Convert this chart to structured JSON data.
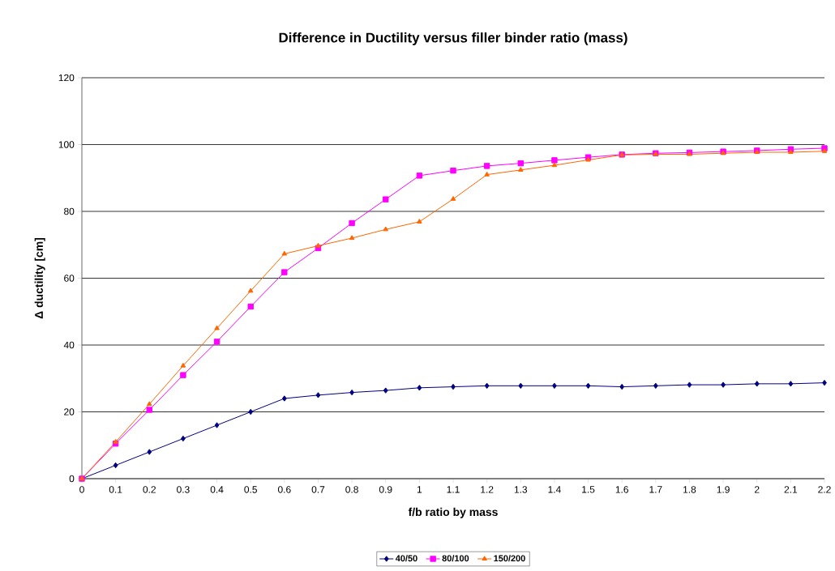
{
  "chart_data": {
    "type": "line",
    "title": "Difference in Ductility versus filler binder ratio (mass)",
    "xlabel": "f/b ratio by mass",
    "ylabel": "Δ ductility [cm]",
    "x": [
      0,
      0.1,
      0.2,
      0.3,
      0.4,
      0.5,
      0.6,
      0.7,
      0.8,
      0.9,
      1,
      1.1,
      1.2,
      1.3,
      1.4,
      1.5,
      1.6,
      1.7,
      1.8,
      1.9,
      2,
      2.1,
      2.2
    ],
    "series": [
      {
        "name": "40/50",
        "color": "#000080",
        "marker": "diamond",
        "values": [
          0,
          4,
          8,
          12,
          16,
          20,
          24,
          25,
          25.8,
          26.4,
          27.2,
          27.5,
          27.8,
          27.8,
          27.8,
          27.8,
          27.5,
          27.8,
          28.1,
          28.1,
          28.4,
          28.4,
          28.7
        ]
      },
      {
        "name": "80/100",
        "color": "#ff00ff",
        "marker": "square",
        "values": [
          0,
          10.5,
          20.6,
          31,
          41,
          51.5,
          61.8,
          69,
          76.5,
          83.6,
          90.7,
          92.2,
          93.6,
          94.4,
          95.3,
          96.2,
          97,
          97.4,
          97.6,
          97.9,
          98.2,
          98.6,
          98.9
        ]
      },
      {
        "name": "150/200",
        "color": "#ff6600",
        "marker": "triangle",
        "values": [
          0,
          11,
          22.3,
          33.8,
          45,
          56.2,
          67.3,
          69.7,
          72,
          74.6,
          76.9,
          83.7,
          91,
          92.4,
          93.8,
          95.4,
          96.9,
          97.1,
          97.1,
          97.4,
          97.7,
          97.7,
          98
        ]
      }
    ],
    "xlim": [
      0,
      2.2
    ],
    "xticks": [
      0,
      0.1,
      0.2,
      0.3,
      0.4,
      0.5,
      0.6,
      0.7,
      0.8,
      0.9,
      1,
      1.1,
      1.2,
      1.3,
      1.4,
      1.5,
      1.6,
      1.7,
      1.8,
      1.9,
      2,
      2.1,
      2.2
    ],
    "ylim": [
      0,
      120
    ],
    "yticks": [
      0,
      20,
      40,
      60,
      80,
      100,
      120
    ],
    "grid": "y",
    "legend": "bottom",
    "line_style": "solid"
  }
}
